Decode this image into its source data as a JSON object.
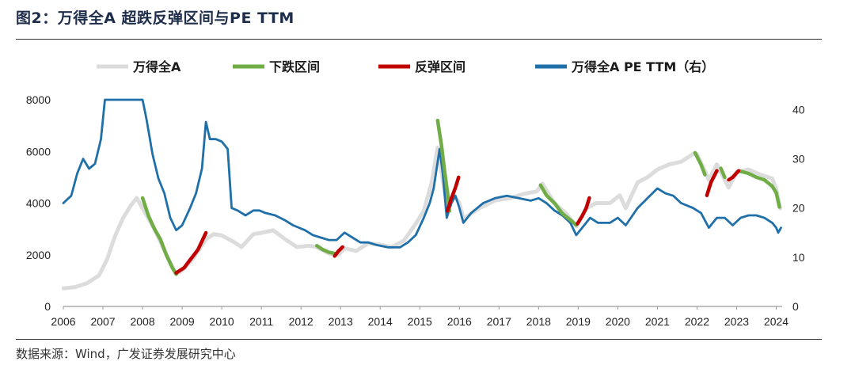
{
  "header": {
    "title": "图2：万得全A  超跌反弹区间与PE TTM"
  },
  "footer": {
    "source": "数据来源：Wind，广发证券发展研究中心"
  },
  "colors": {
    "index": "#dcdcdc",
    "decline": "#70ad47",
    "rebound": "#c00000",
    "pe": "#1f6fa8"
  },
  "chart_data": {
    "type": "line",
    "title": "图2：万得全A  超跌反弹区间与PE TTM",
    "x_ticks": [
      "2006",
      "2007",
      "2008",
      "2009",
      "2010",
      "2011",
      "2012",
      "2013",
      "2014",
      "2015",
      "2016",
      "2017",
      "2018",
      "2019",
      "2020",
      "2021",
      "2022",
      "2023",
      "2024"
    ],
    "xlim": [
      2006.0,
      2024.15
    ],
    "y_left": {
      "ticks": [
        "0",
        "2000",
        "4000",
        "6000",
        "8000"
      ],
      "lim": [
        0,
        8000
      ]
    },
    "y_right": {
      "ticks": [
        "0",
        "10",
        "20",
        "30",
        "40"
      ],
      "lim": [
        0,
        42
      ]
    },
    "legend": {
      "placement": "top",
      "entries": [
        "万得全A",
        "下跌区间",
        "反弹区间",
        "万得全A PE TTM（右）"
      ]
    },
    "series": [
      {
        "name": "万得全A",
        "axis": "left",
        "role": "index",
        "points": [
          [
            2006.0,
            700
          ],
          [
            2006.3,
            750
          ],
          [
            2006.6,
            900
          ],
          [
            2006.9,
            1200
          ],
          [
            2007.1,
            1800
          ],
          [
            2007.3,
            2700
          ],
          [
            2007.5,
            3400
          ],
          [
            2007.7,
            3900
          ],
          [
            2007.85,
            4200
          ],
          [
            2008.0,
            3800
          ],
          [
            2008.3,
            3000
          ],
          [
            2008.6,
            2000
          ],
          [
            2008.85,
            1250
          ],
          [
            2009.0,
            1400
          ],
          [
            2009.3,
            1900
          ],
          [
            2009.6,
            2600
          ],
          [
            2009.8,
            2800
          ],
          [
            2010.0,
            2750
          ],
          [
            2010.3,
            2500
          ],
          [
            2010.5,
            2300
          ],
          [
            2010.8,
            2800
          ],
          [
            2011.0,
            2850
          ],
          [
            2011.3,
            2950
          ],
          [
            2011.6,
            2600
          ],
          [
            2011.9,
            2300
          ],
          [
            2012.2,
            2350
          ],
          [
            2012.4,
            2300
          ],
          [
            2012.7,
            2050
          ],
          [
            2012.95,
            2000
          ],
          [
            2013.1,
            2250
          ],
          [
            2013.4,
            2150
          ],
          [
            2013.7,
            2450
          ],
          [
            2013.95,
            2400
          ],
          [
            2014.3,
            2300
          ],
          [
            2014.6,
            2550
          ],
          [
            2014.9,
            3200
          ],
          [
            2015.1,
            3700
          ],
          [
            2015.3,
            4800
          ],
          [
            2015.45,
            6150
          ],
          [
            2015.55,
            5200
          ],
          [
            2015.7,
            3800
          ],
          [
            2015.85,
            4300
          ],
          [
            2016.0,
            4000
          ],
          [
            2016.1,
            3400
          ],
          [
            2016.5,
            3800
          ],
          [
            2016.9,
            4100
          ],
          [
            2017.3,
            4200
          ],
          [
            2017.6,
            4350
          ],
          [
            2017.95,
            4450
          ],
          [
            2018.1,
            4750
          ],
          [
            2018.4,
            4000
          ],
          [
            2018.7,
            3600
          ],
          [
            2018.95,
            3100
          ],
          [
            2019.2,
            3800
          ],
          [
            2019.45,
            4000
          ],
          [
            2019.8,
            4000
          ],
          [
            2020.05,
            4300
          ],
          [
            2020.2,
            3800
          ],
          [
            2020.5,
            4800
          ],
          [
            2020.75,
            5000
          ],
          [
            2021.0,
            5300
          ],
          [
            2021.3,
            5500
          ],
          [
            2021.6,
            5600
          ],
          [
            2021.9,
            5900
          ],
          [
            2022.0,
            5900
          ],
          [
            2022.3,
            4900
          ],
          [
            2022.5,
            5500
          ],
          [
            2022.8,
            4600
          ],
          [
            2023.0,
            5200
          ],
          [
            2023.3,
            5300
          ],
          [
            2023.6,
            5100
          ],
          [
            2023.9,
            4950
          ],
          [
            2024.0,
            4550
          ],
          [
            2024.1,
            3800
          ]
        ]
      },
      {
        "name": "下跌区间",
        "axis": "left",
        "role": "decline",
        "segments": [
          [
            [
              2008.0,
              4200
            ],
            [
              2008.15,
              3500
            ],
            [
              2008.3,
              3000
            ],
            [
              2008.45,
              2600
            ],
            [
              2008.6,
              2000
            ],
            [
              2008.75,
              1500
            ],
            [
              2008.85,
              1250
            ]
          ],
          [
            [
              2012.4,
              2350
            ],
            [
              2012.55,
              2200
            ],
            [
              2012.7,
              2100
            ],
            [
              2012.85,
              2050
            ]
          ],
          [
            [
              2015.45,
              7200
            ],
            [
              2015.55,
              6200
            ],
            [
              2015.62,
              5300
            ],
            [
              2015.7,
              4400
            ],
            [
              2015.75,
              3700
            ]
          ],
          [
            [
              2018.05,
              4700
            ],
            [
              2018.2,
              4300
            ],
            [
              2018.4,
              4000
            ],
            [
              2018.6,
              3600
            ],
            [
              2018.8,
              3350
            ],
            [
              2018.95,
              3150
            ]
          ],
          [
            [
              2021.95,
              5950
            ],
            [
              2022.1,
              5500
            ],
            [
              2022.2,
              5100
            ]
          ],
          [
            [
              2022.6,
              5350
            ],
            [
              2022.7,
              5000
            ]
          ],
          [
            [
              2023.05,
              5250
            ],
            [
              2023.3,
              5150
            ],
            [
              2023.5,
              5000
            ],
            [
              2023.7,
              4900
            ],
            [
              2023.9,
              4650
            ],
            [
              2024.0,
              4400
            ],
            [
              2024.08,
              3850
            ]
          ]
        ]
      },
      {
        "name": "反弹区间",
        "axis": "left",
        "role": "rebound",
        "segments": [
          [
            [
              2008.85,
              1300
            ],
            [
              2009.05,
              1500
            ],
            [
              2009.2,
              1800
            ],
            [
              2009.4,
              2200
            ],
            [
              2009.6,
              2850
            ]
          ],
          [
            [
              2012.85,
              1950
            ],
            [
              2012.95,
              2150
            ],
            [
              2013.05,
              2300
            ]
          ],
          [
            [
              2015.7,
              3700
            ],
            [
              2015.8,
              4200
            ],
            [
              2015.9,
              4600
            ],
            [
              2015.98,
              5000
            ]
          ],
          [
            [
              2018.98,
              3200
            ],
            [
              2019.1,
              3500
            ],
            [
              2019.2,
              3800
            ],
            [
              2019.28,
              4200
            ]
          ],
          [
            [
              2022.25,
              4300
            ],
            [
              2022.35,
              4800
            ],
            [
              2022.5,
              5250
            ]
          ],
          [
            [
              2022.8,
              4900
            ],
            [
              2022.9,
              5000
            ],
            [
              2023.05,
              5250
            ]
          ]
        ]
      },
      {
        "name": "万得全A PE TTM（右）",
        "axis": "right",
        "role": "pe",
        "points": [
          [
            2006.0,
            21
          ],
          [
            2006.2,
            22.5
          ],
          [
            2006.35,
            27
          ],
          [
            2006.5,
            30
          ],
          [
            2006.65,
            28
          ],
          [
            2006.8,
            29
          ],
          [
            2006.95,
            34
          ],
          [
            2007.05,
            42
          ],
          [
            2007.1,
            42
          ],
          [
            2008.0,
            42
          ],
          [
            2008.1,
            38
          ],
          [
            2008.25,
            31
          ],
          [
            2008.4,
            26
          ],
          [
            2008.55,
            23
          ],
          [
            2008.7,
            18
          ],
          [
            2008.85,
            15.5
          ],
          [
            2009.0,
            16.5
          ],
          [
            2009.2,
            20
          ],
          [
            2009.35,
            23
          ],
          [
            2009.5,
            28
          ],
          [
            2009.6,
            37.5
          ],
          [
            2009.7,
            34
          ],
          [
            2009.85,
            34
          ],
          [
            2010.0,
            33.5
          ],
          [
            2010.15,
            32
          ],
          [
            2010.25,
            20
          ],
          [
            2010.4,
            19.5
          ],
          [
            2010.6,
            18.5
          ],
          [
            2010.8,
            19.5
          ],
          [
            2010.95,
            19.5
          ],
          [
            2011.1,
            19
          ],
          [
            2011.35,
            18.5
          ],
          [
            2011.6,
            17.5
          ],
          [
            2011.8,
            16.5
          ],
          [
            2012.1,
            15.5
          ],
          [
            2012.3,
            14.5
          ],
          [
            2012.5,
            14
          ],
          [
            2012.7,
            13.5
          ],
          [
            2012.9,
            13.5
          ],
          [
            2013.1,
            15
          ],
          [
            2013.3,
            14
          ],
          [
            2013.5,
            13
          ],
          [
            2013.7,
            13
          ],
          [
            2013.9,
            12.5
          ],
          [
            2014.2,
            12
          ],
          [
            2014.5,
            12
          ],
          [
            2014.7,
            13
          ],
          [
            2014.9,
            14.5
          ],
          [
            2015.1,
            18
          ],
          [
            2015.25,
            21
          ],
          [
            2015.35,
            24
          ],
          [
            2015.5,
            32
          ],
          [
            2015.58,
            27
          ],
          [
            2015.68,
            18
          ],
          [
            2015.8,
            21
          ],
          [
            2015.9,
            22.5
          ],
          [
            2016.0,
            20
          ],
          [
            2016.1,
            17
          ],
          [
            2016.3,
            19
          ],
          [
            2016.6,
            21
          ],
          [
            2016.9,
            22
          ],
          [
            2017.2,
            22.5
          ],
          [
            2017.5,
            22
          ],
          [
            2017.8,
            21.5
          ],
          [
            2018.0,
            22
          ],
          [
            2018.2,
            21
          ],
          [
            2018.4,
            19.5
          ],
          [
            2018.6,
            18.5
          ],
          [
            2018.8,
            17
          ],
          [
            2018.95,
            14.5
          ],
          [
            2019.1,
            16
          ],
          [
            2019.3,
            18
          ],
          [
            2019.5,
            17
          ],
          [
            2019.8,
            17
          ],
          [
            2020.0,
            18
          ],
          [
            2020.2,
            16.5
          ],
          [
            2020.5,
            20
          ],
          [
            2020.75,
            22
          ],
          [
            2021.0,
            24
          ],
          [
            2021.2,
            23
          ],
          [
            2021.4,
            22.5
          ],
          [
            2021.6,
            21
          ],
          [
            2021.9,
            20
          ],
          [
            2022.1,
            19
          ],
          [
            2022.3,
            16
          ],
          [
            2022.5,
            18
          ],
          [
            2022.7,
            18
          ],
          [
            2022.9,
            16.5
          ],
          [
            2023.1,
            18
          ],
          [
            2023.3,
            18.5
          ],
          [
            2023.5,
            18.5
          ],
          [
            2023.7,
            18
          ],
          [
            2023.9,
            17
          ],
          [
            2024.0,
            16
          ],
          [
            2024.05,
            15
          ],
          [
            2024.12,
            16
          ]
        ]
      }
    ]
  }
}
